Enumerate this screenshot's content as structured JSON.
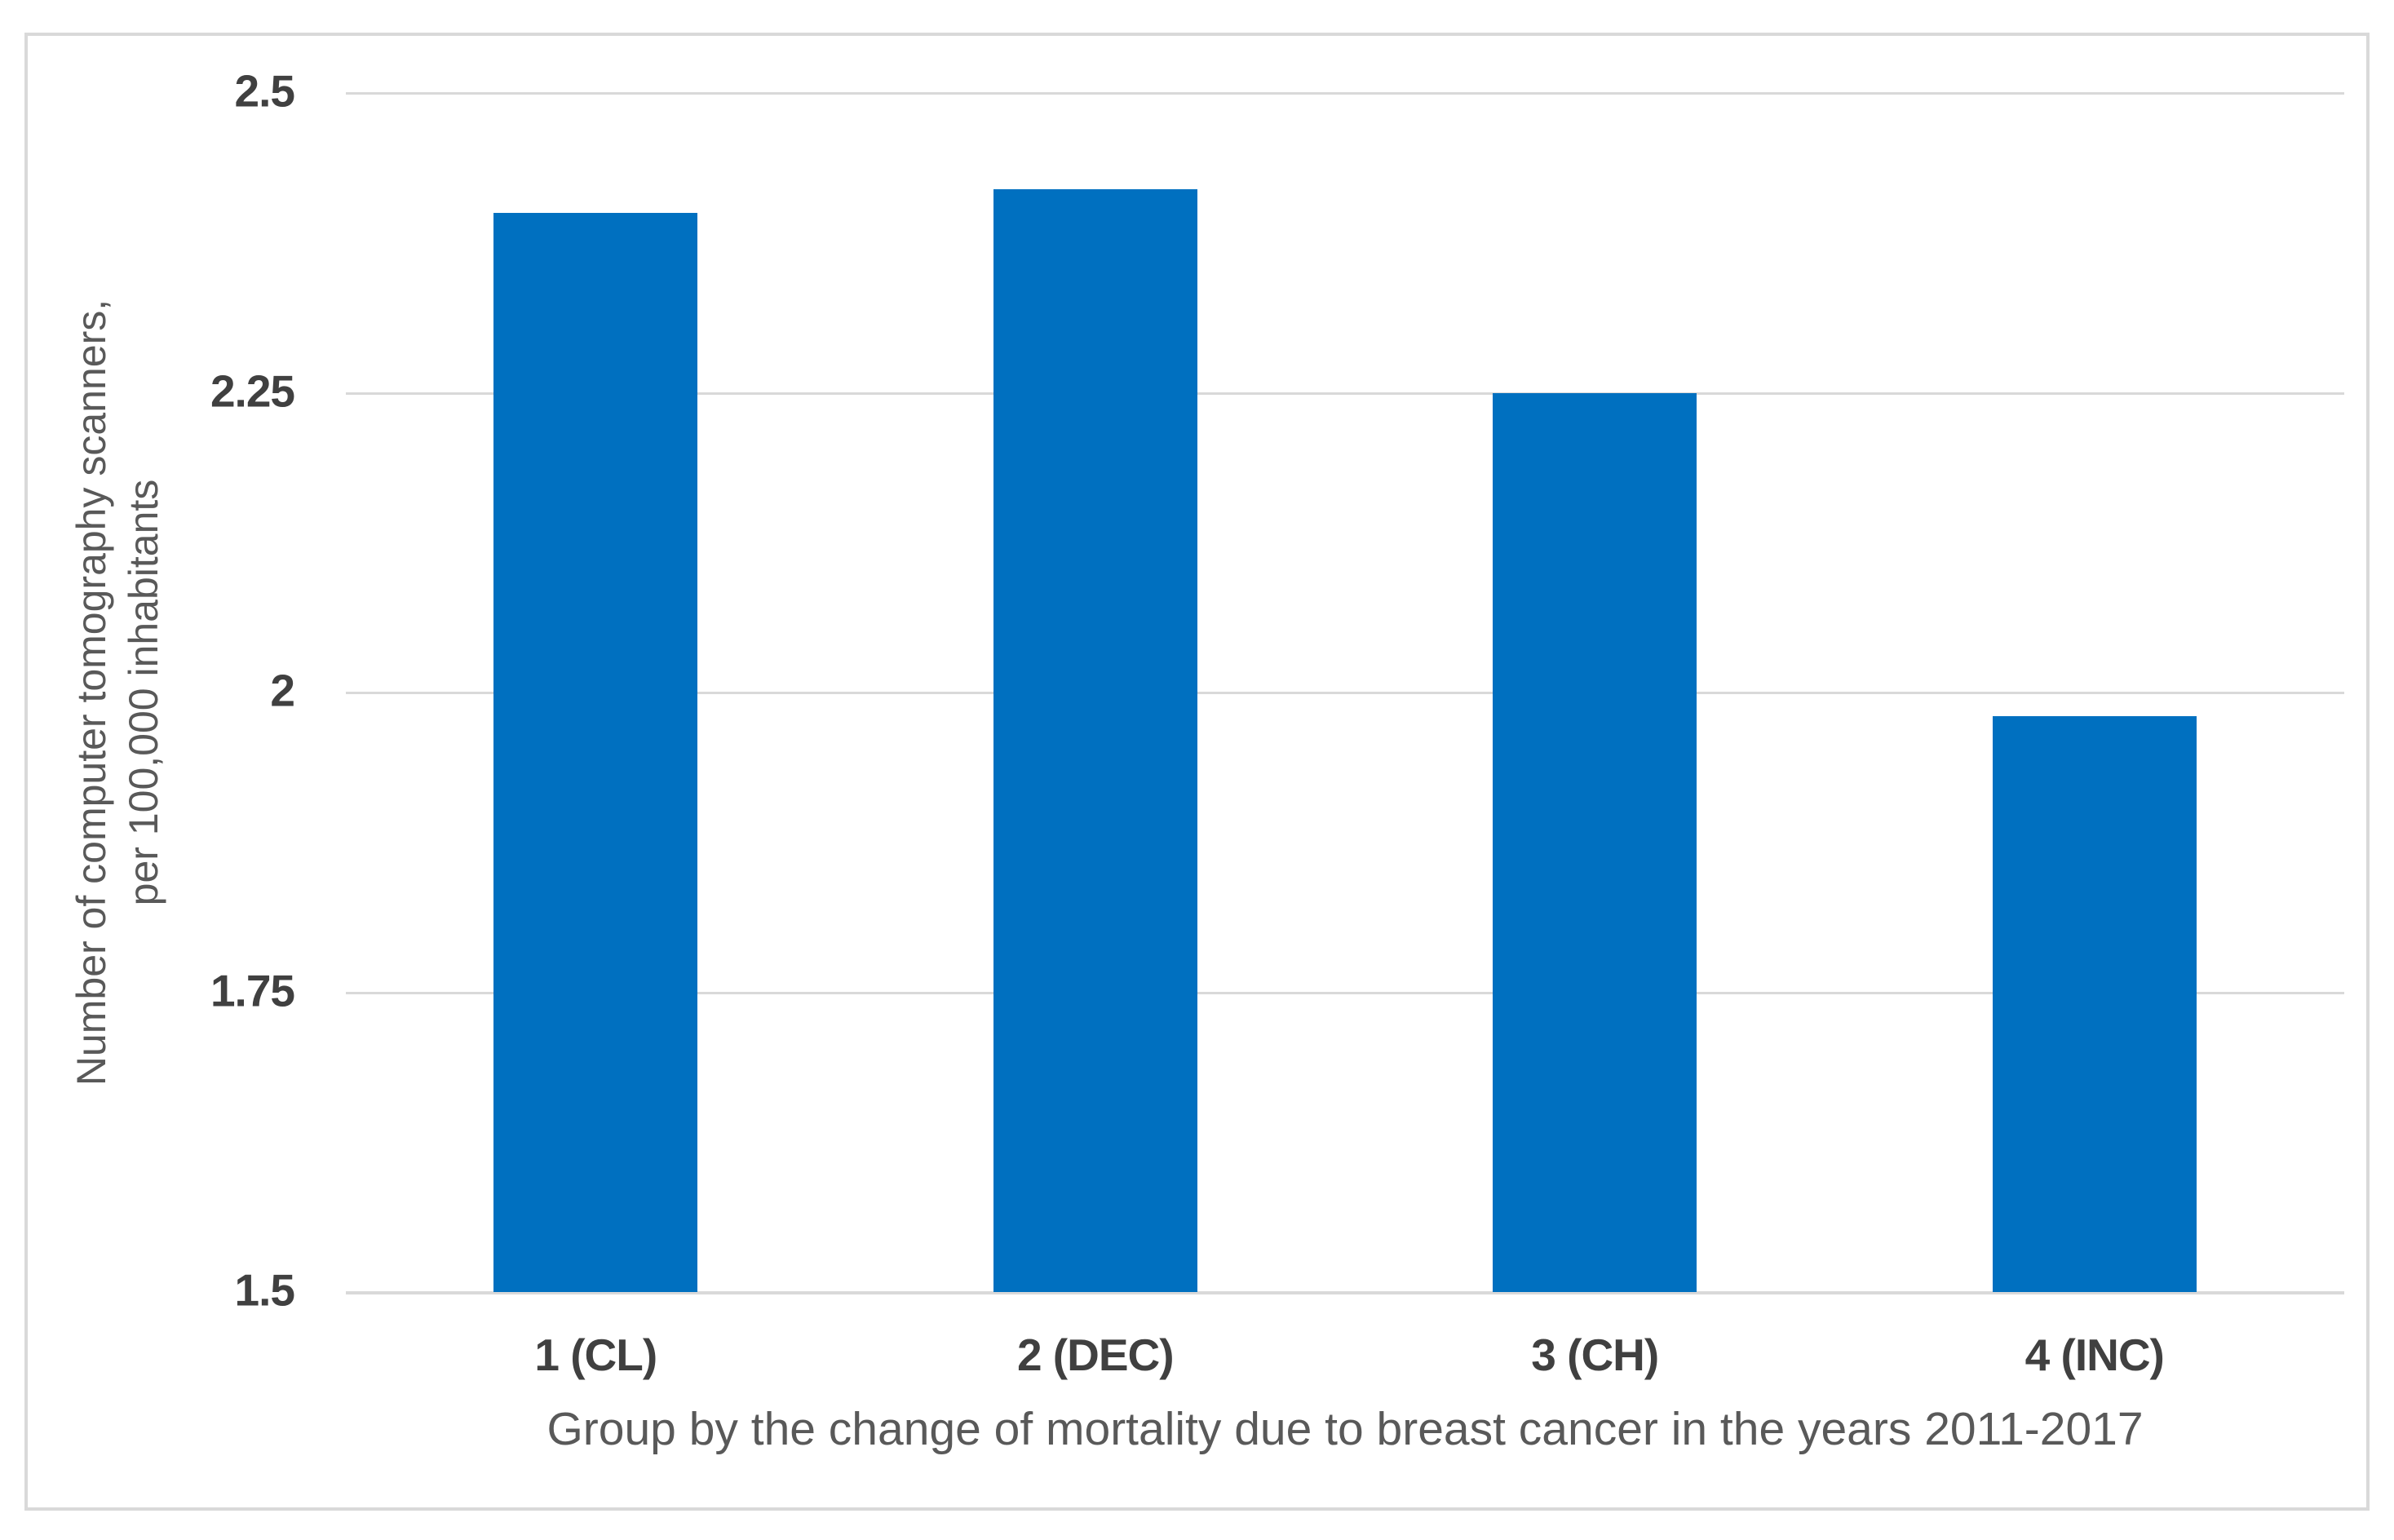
{
  "chart_data": {
    "type": "bar",
    "title": "",
    "categories": [
      "1 (CL)",
      "2 (DEC)",
      "3 (CH)",
      "4 (INC)"
    ],
    "values": [
      2.4,
      2.42,
      2.25,
      1.98
    ],
    "xlabel": "Group by the change of mortality due to breast cancer in the years 2011-2017",
    "ylabel": "Number of computer tomography scanners, per 100,000 inhabitants",
    "ylabel_line1": "Number of computer tomography scanners,",
    "ylabel_line2": "per 100,000 inhabitants",
    "ylim": [
      1.5,
      2.5
    ],
    "yticks": [
      2.5,
      2.25,
      2,
      1.75,
      1.5
    ],
    "ytick_labels": [
      "2.5",
      "2.25",
      "2",
      "1.75",
      "1.5"
    ],
    "grid": true,
    "legend": false,
    "colors": {
      "bar": "#0070c0",
      "gridline": "#d9d9d9",
      "frame_border": "#d9d9d9",
      "tick_label": "#404040",
      "axis_title": "#595959",
      "background": "#ffffff"
    }
  }
}
